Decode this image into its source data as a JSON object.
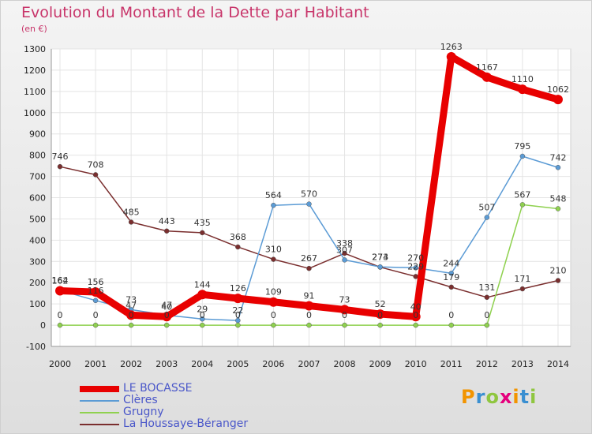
{
  "chart_data": {
    "type": "line",
    "title": "Evolution du Montant de la Dette par Habitant",
    "subtitle": "(en €)",
    "x": [
      "2000",
      "2001",
      "2002",
      "2003",
      "2004",
      "2005",
      "2006",
      "2007",
      "2008",
      "2009",
      "2010",
      "2011",
      "2012",
      "2013",
      "2014"
    ],
    "ylim": [
      -100,
      1300
    ],
    "yticks": [
      -100,
      0,
      100,
      200,
      300,
      400,
      500,
      600,
      700,
      800,
      900,
      1000,
      1100,
      1200,
      1300
    ],
    "grid": true,
    "legend_position": "bottom-left",
    "series": [
      {
        "name": "LE BOCASSE",
        "color": "#e80000",
        "values": [
          162,
          156,
          47,
          40,
          144,
          126,
          109,
          91,
          73,
          52,
          40,
          1263,
          1167,
          1110,
          1062
        ]
      },
      {
        "name": "Clères",
        "color": "#5b9bd5",
        "values": [
          164,
          116,
          73,
          47,
          29,
          22,
          564,
          570,
          307,
          274,
          270,
          244,
          507,
          795,
          742
        ]
      },
      {
        "name": "Grugny",
        "color": "#8fd14f",
        "values": [
          0,
          0,
          0,
          0,
          0,
          0,
          0,
          0,
          0,
          0,
          0,
          0,
          0,
          567,
          548
        ]
      },
      {
        "name": "La Houssaye-Béranger",
        "color": "#7a2e2e",
        "values": [
          746,
          708,
          485,
          443,
          435,
          368,
          310,
          267,
          338,
          273,
          229,
          179,
          131,
          171,
          210
        ]
      }
    ]
  },
  "logo": {
    "text": "Proxiti"
  }
}
